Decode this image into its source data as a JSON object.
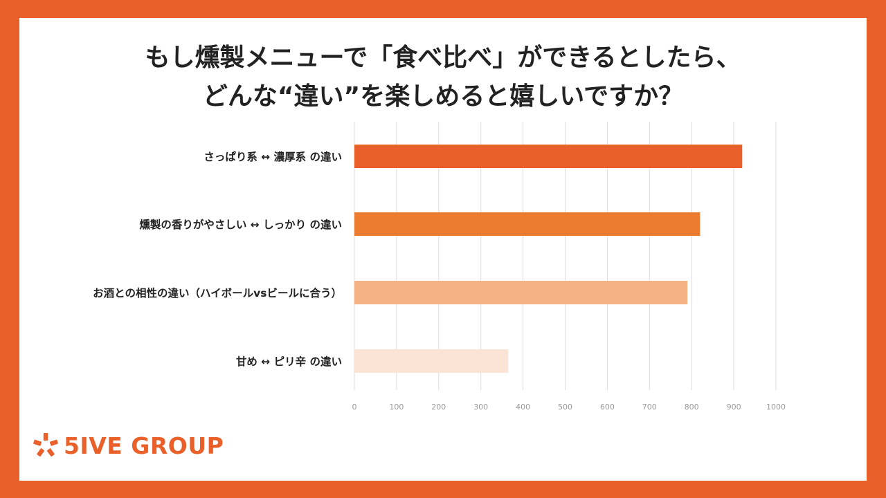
{
  "title": {
    "line1": "もし燻製メニューで「食べ比べ」ができるとしたら、",
    "line2": "どんな“違い”を楽しめると嬉しいですか？"
  },
  "logo": {
    "text": "5IVE GROUP",
    "icon": "asterisk-logo-icon",
    "color": "#E9602A"
  },
  "chart_data": {
    "type": "bar",
    "orientation": "horizontal",
    "title": "もし燻製メニューで「食べ比べ」ができるとしたら、どんな“違い”を楽しめると嬉しいですか？",
    "categories": [
      "さっぱり系 ↔ 濃厚系 の違い",
      "燻製の香りがやさしい ↔ しっかり の違い",
      "お酒との相性の違い（ハイボールvsビールに合う）",
      "甘め ↔ ピリ辛 の違い"
    ],
    "values": [
      920,
      820,
      790,
      365
    ],
    "bar_colors": [
      "#E9602A",
      "#EC7D30",
      "#F4B183",
      "#FBE4D6"
    ],
    "xlim": [
      0,
      1000
    ],
    "xticks": [
      0,
      100,
      200,
      300,
      400,
      500,
      600,
      700,
      800,
      900,
      1000
    ],
    "xlabel": "",
    "ylabel": "",
    "grid": true,
    "legend": "none"
  }
}
